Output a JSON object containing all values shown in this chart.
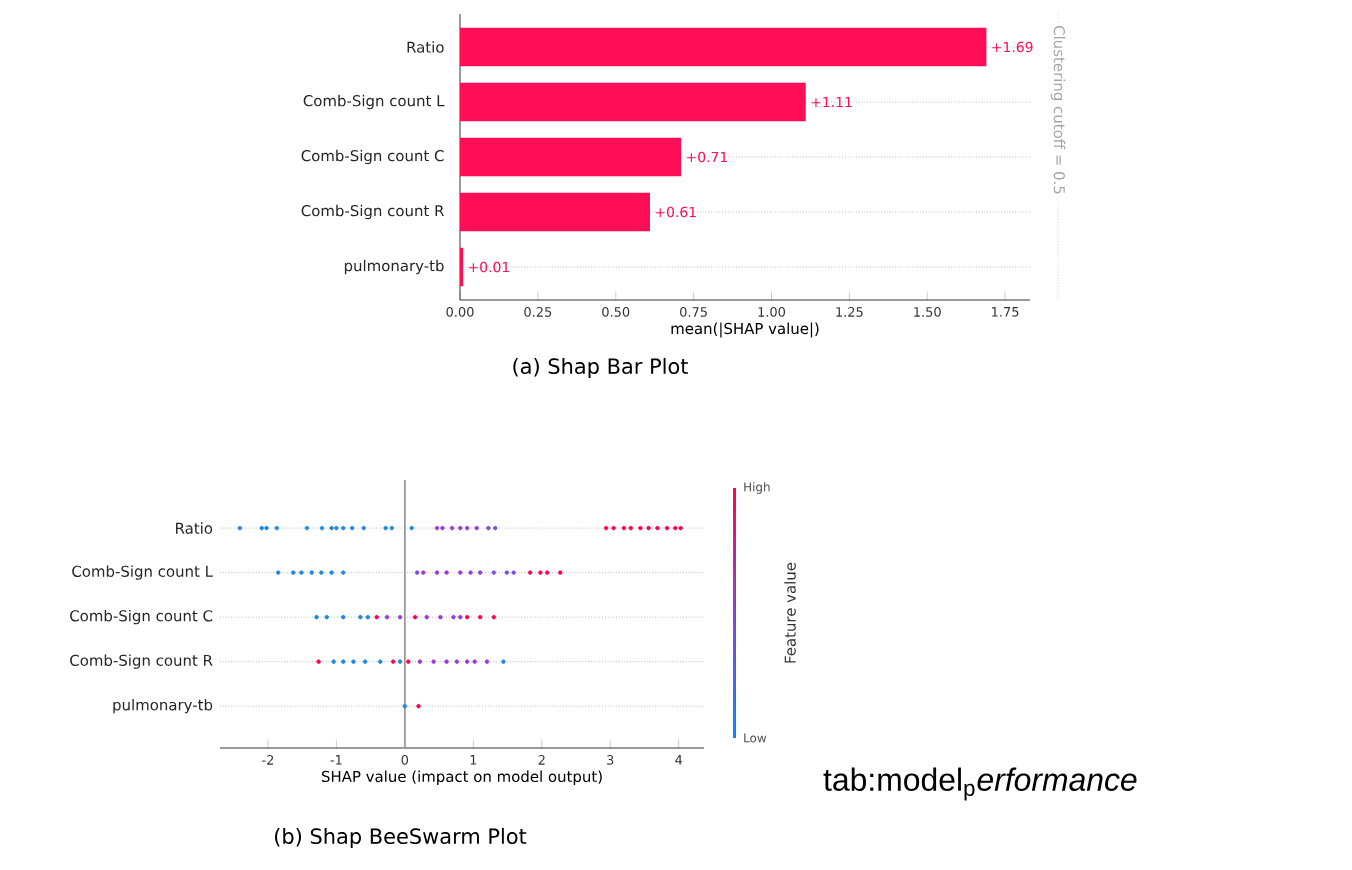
{
  "chart_data": [
    {
      "type": "bar",
      "orientation": "horizontal",
      "categories": [
        "Ratio",
        "Comb-Sign count L",
        "Comb-Sign count C",
        "Comb-Sign count R",
        "pulmonary-tb"
      ],
      "values": [
        1.69,
        1.11,
        0.71,
        0.61,
        0.01
      ],
      "color": "#ff0d57",
      "value_labels": [
        "+1.69",
        "+1.11",
        "+0.71",
        "+0.61",
        "+0.01"
      ],
      "xlim": [
        0,
        1.83
      ],
      "xticks": [
        {
          "value": 0,
          "label": "0.00"
        },
        {
          "value": 0.25,
          "label": "0.25"
        },
        {
          "value": 0.5,
          "label": "0.50"
        },
        {
          "value": 0.75,
          "label": "0.75"
        },
        {
          "value": 1,
          "label": "1.00"
        },
        {
          "value": 1.25,
          "label": "1.25"
        },
        {
          "value": 1.5,
          "label": "1.50"
        },
        {
          "value": 1.75,
          "label": "1.75"
        }
      ],
      "xlabel": "mean(|SHAP value|)",
      "grid": "y",
      "annotations": [
        "Clustering cutoff = 0.5",
        "(a)  Shap Bar Plot"
      ]
    },
    {
      "type": "scatter",
      "orientation": "horizontal",
      "categories": [
        "Ratio",
        "Comb-Sign count L",
        "Comb-Sign count C",
        "Comb-Sign count R",
        "pulmonary-tb"
      ],
      "series": [
        {
          "x": [
            "Ratio",
            "Ratio",
            "Ratio",
            "Ratio",
            "Ratio",
            "Ratio",
            "Ratio",
            "Ratio",
            "Ratio",
            "Ratio",
            "Ratio",
            "Ratio",
            "Ratio",
            "Ratio",
            "Ratio",
            "Ratio",
            "Ratio",
            "Ratio",
            "Ratio",
            "Ratio",
            "Ratio",
            "Ratio",
            "Ratio",
            "Ratio",
            "Ratio",
            "Ratio",
            "Ratio",
            "Ratio",
            "Ratio",
            "Ratio",
            "Ratio",
            "Ratio"
          ],
          "values": [
            -2.41,
            -2.09,
            -2.02,
            -1.87,
            -1.43,
            -1.21,
            -1.07,
            -1.0,
            -0.9,
            -0.77,
            -0.6,
            -0.28,
            -0.19,
            0.1,
            0.47,
            0.55,
            0.69,
            0.81,
            0.91,
            1.05,
            1.22,
            1.32,
            2.94,
            3.05,
            3.2,
            3.3,
            3.44,
            3.56,
            3.69,
            3.83,
            3.95,
            4.03
          ],
          "colors": [
            "#1e88e5",
            "#1e88e5",
            "#1e88e5",
            "#1e88e5",
            "#1e88e5",
            "#1e88e5",
            "#1e88e5",
            "#1e88e5",
            "#1e88e5",
            "#1e88e5",
            "#1e88e5",
            "#1e88e5",
            "#1e88e5",
            "#1e88e5",
            "#9b3ad8",
            "#9b3ad8",
            "#9b3ad8",
            "#9b3ad8",
            "#9b3ad8",
            "#9b3ad8",
            "#7a4fe0",
            "#7a4fe0",
            "#ff0052",
            "#ff0052",
            "#ff0052",
            "#ff0052",
            "#ff0052",
            "#ff0052",
            "#ff0052",
            "#ff0052",
            "#ff0052",
            "#ff0052"
          ]
        },
        {
          "x": [
            "Comb-Sign count L",
            "Comb-Sign count L",
            "Comb-Sign count L",
            "Comb-Sign count L",
            "Comb-Sign count L",
            "Comb-Sign count L",
            "Comb-Sign count L",
            "Comb-Sign count L",
            "Comb-Sign count L",
            "Comb-Sign count L",
            "Comb-Sign count L",
            "Comb-Sign count L",
            "Comb-Sign count L",
            "Comb-Sign count L",
            "Comb-Sign count L",
            "Comb-Sign count L",
            "Comb-Sign count L",
            "Comb-Sign count L",
            "Comb-Sign count L",
            "Comb-Sign count L",
            "Comb-Sign count L"
          ],
          "values": [
            -1.85,
            -1.63,
            -1.51,
            -1.36,
            -1.22,
            -1.07,
            -0.9,
            0.18,
            0.27,
            0.47,
            0.61,
            0.81,
            0.96,
            1.1,
            1.3,
            1.49,
            1.59,
            1.83,
            1.98,
            2.08,
            2.27
          ],
          "colors": [
            "#1e88e5",
            "#1e88e5",
            "#1e88e5",
            "#1e88e5",
            "#1e88e5",
            "#1e88e5",
            "#1e88e5",
            "#7a4fe0",
            "#9b3ad8",
            "#9b3ad8",
            "#9b3ad8",
            "#9b3ad8",
            "#9b3ad8",
            "#9b3ad8",
            "#7a4fe0",
            "#7a4fe0",
            "#7a4fe0",
            "#ff0052",
            "#ff0052",
            "#ff0052",
            "#ff0052"
          ]
        },
        {
          "x": [
            "Comb-Sign count C",
            "Comb-Sign count C",
            "Comb-Sign count C",
            "Comb-Sign count C",
            "Comb-Sign count C",
            "Comb-Sign count C",
            "Comb-Sign count C",
            "Comb-Sign count C",
            "Comb-Sign count C",
            "Comb-Sign count C",
            "Comb-Sign count C",
            "Comb-Sign count C",
            "Comb-Sign count C",
            "Comb-Sign count C",
            "Comb-Sign count C",
            "Comb-Sign count C"
          ],
          "values": [
            -1.29,
            -1.14,
            -0.9,
            -0.65,
            -0.54,
            -0.41,
            -0.26,
            -0.07,
            0.15,
            0.32,
            0.52,
            0.71,
            0.81,
            0.91,
            1.1,
            1.3
          ],
          "colors": [
            "#1e88e5",
            "#1e88e5",
            "#1e88e5",
            "#1e88e5",
            "#1e88e5",
            "#ff0052",
            "#9b3ad8",
            "#9b3ad8",
            "#ff0052",
            "#9b3ad8",
            "#9b3ad8",
            "#9b3ad8",
            "#9b3ad8",
            "#ff0052",
            "#ff0052",
            "#ff0052"
          ]
        },
        {
          "x": [
            "Comb-Sign count R",
            "Comb-Sign count R",
            "Comb-Sign count R",
            "Comb-Sign count R",
            "Comb-Sign count R",
            "Comb-Sign count R",
            "Comb-Sign count R",
            "Comb-Sign count R",
            "Comb-Sign count R",
            "Comb-Sign count R",
            "Comb-Sign count R",
            "Comb-Sign count R",
            "Comb-Sign count R",
            "Comb-Sign count R",
            "Comb-Sign count R",
            "Comb-Sign count R",
            "Comb-Sign count R"
          ],
          "values": [
            -1.26,
            -1.04,
            -0.9,
            -0.75,
            -0.58,
            -0.36,
            -0.17,
            -0.07,
            0.05,
            0.22,
            0.42,
            0.61,
            0.76,
            0.91,
            1.02,
            1.2,
            1.44
          ],
          "colors": [
            "#ff0052",
            "#1e88e5",
            "#1e88e5",
            "#1e88e5",
            "#1e88e5",
            "#1e88e5",
            "#ff0052",
            "#1e88e5",
            "#ff0052",
            "#9b3ad8",
            "#9b3ad8",
            "#9b3ad8",
            "#9b3ad8",
            "#9b3ad8",
            "#9b3ad8",
            "#9b3ad8",
            "#1e88e5"
          ]
        },
        {
          "x": [
            "pulmonary-tb",
            "pulmonary-tb"
          ],
          "values": [
            0,
            0.2
          ],
          "colors": [
            "#1e88e5",
            "#ff0052"
          ]
        }
      ],
      "marker": "circle",
      "xlim": [
        -2.7,
        4.37
      ],
      "xticks": [
        -2,
        -1,
        0,
        1,
        2,
        3,
        4
      ],
      "xlabel": "SHAP value (impact on model output)",
      "clabel": "Feature value",
      "ref_lines": [
        {
          "axis": "x",
          "value": 0,
          "color": "#999999"
        }
      ],
      "grid": "y",
      "annotations": [
        "(b)  Shap BeeSwarm Plot",
        "tab:model$_{p}$*erformance*",
        "Low",
        "High"
      ]
    }
  ]
}
